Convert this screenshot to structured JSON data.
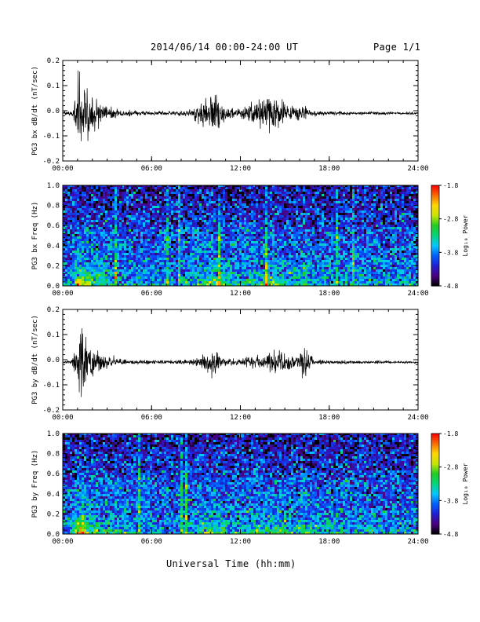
{
  "header": {
    "title": "2014/06/14  00:00-24:00 UT",
    "page": "Page 1/1"
  },
  "xaxis_label": "Universal Time (hh:mm)",
  "time_ticks": [
    "00:00",
    "06:00",
    "12:00",
    "18:00",
    "24:00"
  ],
  "colorbar": {
    "label": "Log₁₀ Power",
    "ticks": [
      "-1.8",
      "-2.8",
      "-3.8",
      "-4.8"
    ],
    "range": [
      -4.8,
      -1.8
    ],
    "colors": [
      "#000000",
      "#4b0082",
      "#1f1fd6",
      "#0060ff",
      "#00c8ff",
      "#00d67a",
      "#22cc22",
      "#c8e600",
      "#ffd700",
      "#ff6a00",
      "#ff0000"
    ]
  },
  "chart_data": [
    {
      "type": "line",
      "panel": "bx time series",
      "ylabel": "PG3 bx dB/dt (nT/sec)",
      "ylim": [
        -0.2,
        0.2
      ],
      "yticks": [
        "0.2",
        "0.1",
        "0.0",
        "-0.1",
        "-0.2"
      ],
      "xlim_hours": [
        0,
        24
      ],
      "baseline": -0.01,
      "activity_envelope": {
        "hours": [
          0,
          0.7,
          1.0,
          1.1,
          1.3,
          1.6,
          2.0,
          2.5,
          3.0,
          4.0,
          5.0,
          6.0,
          7.5,
          8.5,
          9.2,
          9.7,
          10.1,
          10.5,
          11.0,
          12.0,
          12.6,
          13.5,
          14.3,
          15.0,
          15.5,
          16.0,
          16.5,
          17.0,
          18.0,
          24.0
        ],
        "amplitude": [
          0.003,
          0.01,
          0.12,
          0.17,
          0.15,
          0.09,
          0.06,
          0.04,
          0.02,
          0.012,
          0.008,
          0.007,
          0.007,
          0.01,
          0.03,
          0.05,
          0.07,
          0.06,
          0.025,
          0.015,
          0.04,
          0.045,
          0.06,
          0.035,
          0.02,
          0.03,
          0.02,
          0.01,
          0.006,
          0.004
        ]
      }
    },
    {
      "type": "heatmap",
      "panel": "bx spectrogram",
      "ylabel": "PG3 bx Freq (Hz)",
      "ylim": [
        0.0,
        1.0
      ],
      "yticks": [
        "1.0",
        "0.8",
        "0.6",
        "0.4",
        "0.2",
        "0.0"
      ],
      "xlim_hours": [
        0,
        24
      ],
      "value_range": [
        -4.8,
        -1.8
      ],
      "activity_envelope": {
        "hours": [
          0,
          0.7,
          1.0,
          1.1,
          1.3,
          1.6,
          2.0,
          2.5,
          3.0,
          4.0,
          5.0,
          6.0,
          7.5,
          8.5,
          9.2,
          9.7,
          10.1,
          10.5,
          11.0,
          12.0,
          12.6,
          13.5,
          14.3,
          15.0,
          15.5,
          16.0,
          16.5,
          17.0,
          18.0,
          24.0
        ],
        "amplitude": [
          0.1,
          0.2,
          0.9,
          1.0,
          0.9,
          0.6,
          0.45,
          0.35,
          0.25,
          0.15,
          0.1,
          0.1,
          0.1,
          0.15,
          0.3,
          0.45,
          0.55,
          0.5,
          0.3,
          0.2,
          0.35,
          0.4,
          0.45,
          0.35,
          0.25,
          0.35,
          0.3,
          0.2,
          0.15,
          0.12
        ]
      }
    },
    {
      "type": "line",
      "panel": "by time series",
      "ylabel": "PG3 by dB/dt (nT/sec)",
      "ylim": [
        -0.2,
        0.2
      ],
      "yticks": [
        "0.2",
        "0.1",
        "0.0",
        "-0.1",
        "-0.2"
      ],
      "xlim_hours": [
        0,
        24
      ],
      "baseline": -0.01,
      "activity_envelope": {
        "hours": [
          0,
          0.6,
          1.0,
          1.3,
          1.7,
          2.0,
          2.5,
          3.0,
          4.0,
          5.0,
          6.0,
          7.5,
          8.5,
          9.5,
          10.0,
          10.5,
          11.0,
          12.0,
          13.0,
          14.0,
          14.6,
          15.2,
          15.8,
          16.3,
          16.6,
          17.0,
          18.0,
          24.0
        ],
        "amplitude": [
          0.003,
          0.008,
          0.09,
          0.12,
          0.07,
          0.05,
          0.04,
          0.02,
          0.012,
          0.008,
          0.007,
          0.007,
          0.01,
          0.025,
          0.05,
          0.03,
          0.015,
          0.01,
          0.02,
          0.03,
          0.045,
          0.035,
          0.015,
          0.06,
          0.035,
          0.01,
          0.006,
          0.004
        ]
      }
    },
    {
      "type": "heatmap",
      "panel": "by spectrogram",
      "ylabel": "PG3 by Freq (Hz)",
      "ylim": [
        0.0,
        1.0
      ],
      "yticks": [
        "1.0",
        "0.8",
        "0.6",
        "0.4",
        "0.2",
        "0.0"
      ],
      "xlim_hours": [
        0,
        24
      ],
      "value_range": [
        -4.8,
        -1.8
      ],
      "activity_envelope": {
        "hours": [
          0,
          0.6,
          1.0,
          1.3,
          1.7,
          2.0,
          2.5,
          3.0,
          4.0,
          5.0,
          6.0,
          7.5,
          8.5,
          9.5,
          10.0,
          10.5,
          11.0,
          12.0,
          13.0,
          14.0,
          14.6,
          15.2,
          15.8,
          16.3,
          16.6,
          17.0,
          18.0,
          24.0
        ],
        "amplitude": [
          0.1,
          0.2,
          0.85,
          1.0,
          0.6,
          0.45,
          0.4,
          0.25,
          0.15,
          0.1,
          0.1,
          0.1,
          0.15,
          0.3,
          0.5,
          0.35,
          0.25,
          0.2,
          0.3,
          0.35,
          0.45,
          0.4,
          0.25,
          0.45,
          0.35,
          0.2,
          0.15,
          0.12
        ]
      }
    }
  ]
}
